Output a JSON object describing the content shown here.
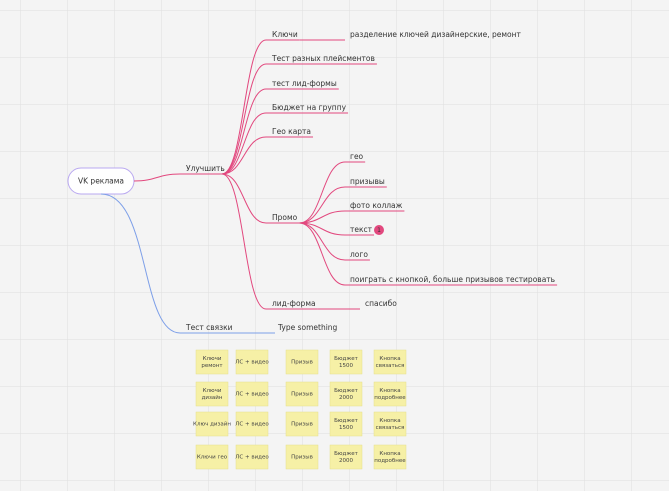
{
  "root": "VK реклама",
  "branches": [
    {
      "label": "Улучшить",
      "children": [
        {
          "label": "Ключи",
          "children": [
            {
              "label": "разделение ключей дизайнерские, ремонт"
            }
          ]
        },
        {
          "label": "Тест разных плейсментов"
        },
        {
          "label": "тест лид-формы"
        },
        {
          "label": "Бюджет на группу"
        },
        {
          "label": "Гео карта"
        },
        {
          "label": "Промо",
          "children": [
            {
              "label": "гео"
            },
            {
              "label": "призывы"
            },
            {
              "label": "фото коллаж"
            },
            {
              "label": "текст",
              "badge": "1"
            },
            {
              "label": "лого"
            },
            {
              "label": "поиграть с кнопкой, больше призывов тестировать"
            }
          ]
        },
        {
          "label": "лид-форма",
          "children": [
            {
              "label": "спасибо"
            }
          ]
        }
      ]
    },
    {
      "label": "Тест связки",
      "children": [
        {
          "label": "Type something"
        }
      ]
    }
  ],
  "stickies": [
    [
      [
        "Ключи",
        "ремонт"
      ],
      [
        "ЛС + видео"
      ],
      [
        "Призыв"
      ],
      [
        "Бюджет",
        "1500"
      ],
      [
        "Кнопка",
        "связаться"
      ]
    ],
    [
      [
        "Ключи",
        "дизайн"
      ],
      [
        "ЛС + видео"
      ],
      [
        "Призыв"
      ],
      [
        "Бюджет",
        "2000"
      ],
      [
        "Кнопка",
        "подробнее"
      ]
    ],
    [
      [
        "Ключ дизайн"
      ],
      [
        "ЛС + видео"
      ],
      [
        "Призыв"
      ],
      [
        "Бюджет",
        "1500"
      ],
      [
        "Кнопка",
        "связаться"
      ]
    ],
    [
      [
        "Ключи гео"
      ],
      [
        "ЛС + видео"
      ],
      [
        "Призыв"
      ],
      [
        "Бюджет",
        "2000"
      ],
      [
        "Кнопка",
        "подробнее"
      ]
    ]
  ]
}
